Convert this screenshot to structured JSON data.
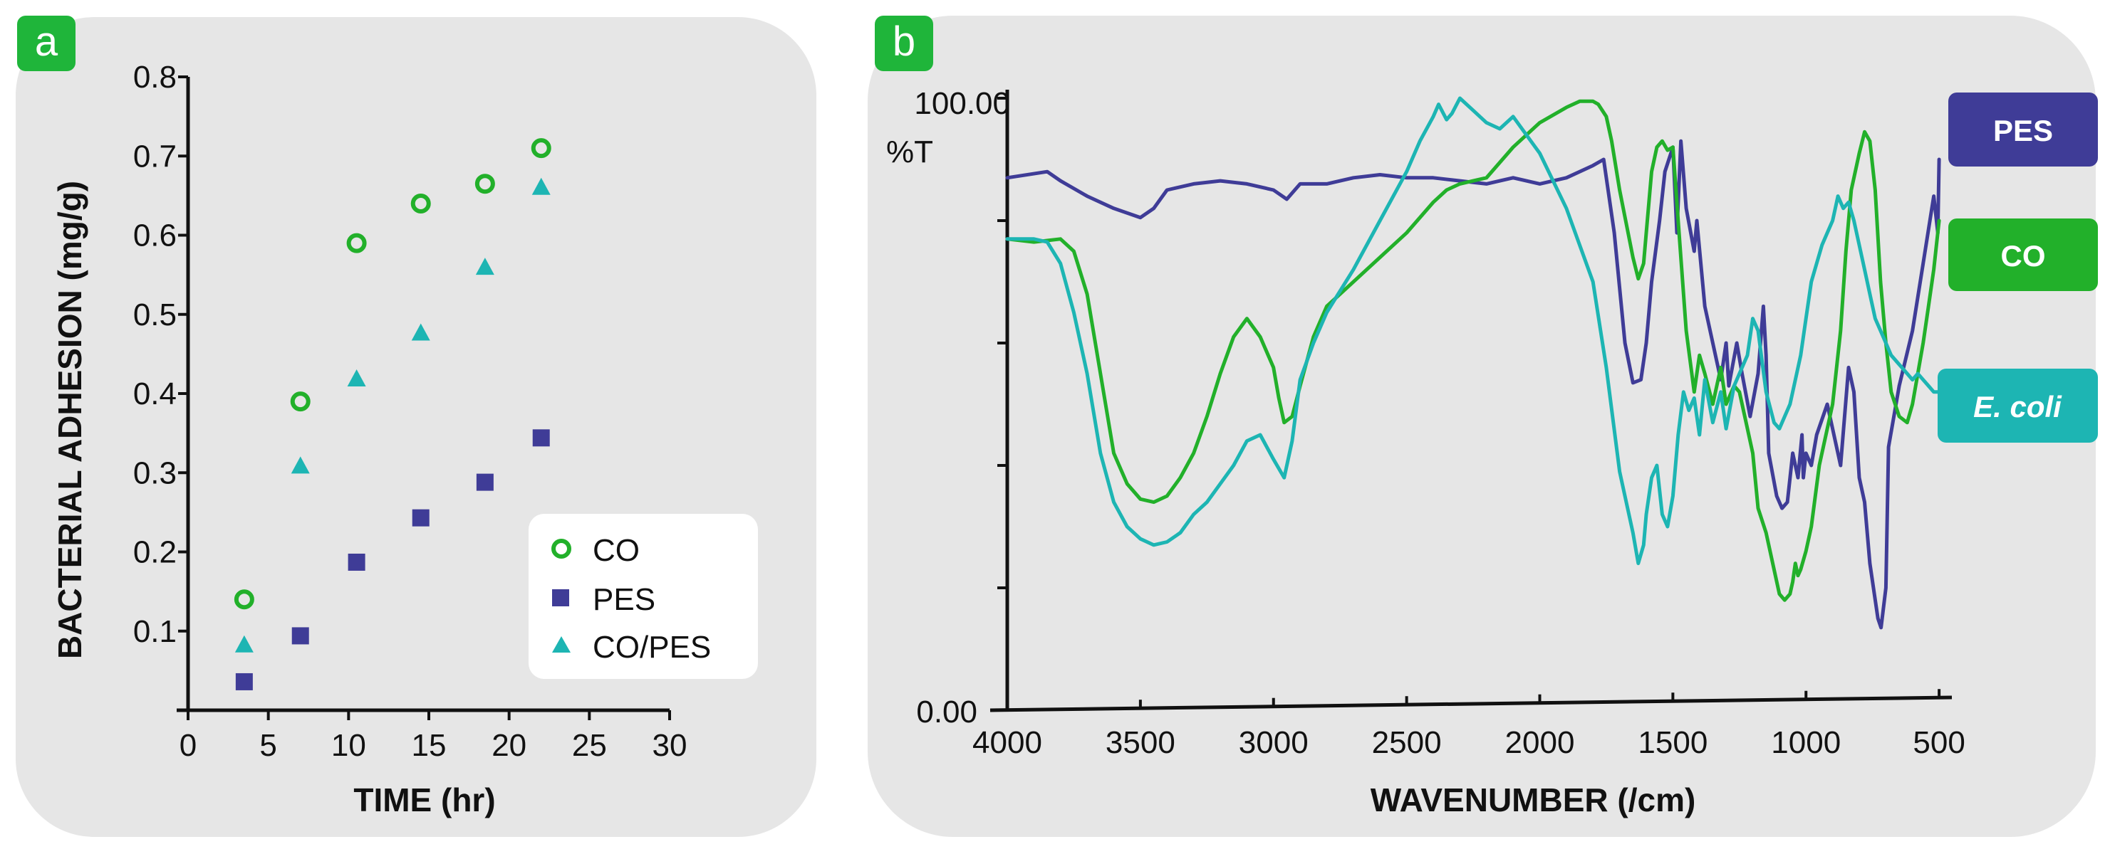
{
  "colors": {
    "panel_bg": "#e6e6e6",
    "tag_bg": "#1fb53a",
    "co": "#22b02a",
    "pes": "#3f3c97",
    "co_pes": "#1db5b3",
    "ecoli": "#1db5b3",
    "axis": "#111111"
  },
  "panel_a": {
    "tag": "a",
    "legend": [
      "CO",
      "PES",
      "CO/PES"
    ]
  },
  "panel_b": {
    "tag": "b",
    "y_top_label": "100.00",
    "y_unit_label": "%T",
    "y_bottom_label": "0.00",
    "legend_boxes": [
      "PES",
      "CO",
      "E. coli"
    ]
  },
  "chart_data": [
    {
      "type": "scatter",
      "title": "",
      "xlabel": "TIME (hr)",
      "ylabel": "BACTERIAL ADHESION (mg/g)",
      "xlim": [
        0,
        30
      ],
      "ylim": [
        0,
        0.8
      ],
      "xticks": [
        "0",
        "5",
        "10",
        "15",
        "20",
        "25",
        "30"
      ],
      "yticks": [
        "0.1",
        "0.2",
        "0.3",
        "0.4",
        "0.5",
        "0.6",
        "0.7",
        "0.8"
      ],
      "series": [
        {
          "name": "CO",
          "marker": "circle-open",
          "x": [
            3.5,
            7,
            10.5,
            14.5,
            18.5,
            22
          ],
          "y": [
            0.14,
            0.39,
            0.59,
            0.64,
            0.665,
            0.71
          ]
        },
        {
          "name": "PES",
          "marker": "square",
          "x": [
            3.5,
            7,
            10.5,
            14.5,
            18.5,
            22
          ],
          "y": [
            0.036,
            0.094,
            0.187,
            0.243,
            0.288,
            0.344
          ]
        },
        {
          "name": "CO/PES",
          "marker": "triangle",
          "x": [
            3.5,
            7,
            10.5,
            14.5,
            18.5,
            22
          ],
          "y": [
            0.082,
            0.308,
            0.418,
            0.476,
            0.559,
            0.66
          ]
        }
      ]
    },
    {
      "type": "line",
      "title": "",
      "xlabel": "WAVENUMBER (/cm)",
      "ylabel": "%T",
      "xlim": [
        4000,
        500
      ],
      "ylim": [
        0,
        100
      ],
      "xticks": [
        "4000",
        "3500",
        "3000",
        "2500",
        "2000",
        "1500",
        "1000",
        "500"
      ],
      "series": [
        {
          "name": "PES",
          "x": [
            4000,
            3850,
            3800,
            3700,
            3600,
            3500,
            3450,
            3400,
            3300,
            3200,
            3100,
            3000,
            2950,
            2900,
            2800,
            2700,
            2600,
            2500,
            2400,
            2300,
            2200,
            2100,
            2000,
            1900,
            1800,
            1760,
            1720,
            1680,
            1650,
            1620,
            1600,
            1580,
            1550,
            1530,
            1500,
            1485,
            1470,
            1450,
            1420,
            1410,
            1380,
            1320,
            1300,
            1290,
            1260,
            1240,
            1210,
            1180,
            1160,
            1150,
            1140,
            1110,
            1090,
            1070,
            1050,
            1040,
            1030,
            1015,
            1010,
            1000,
            980,
            960,
            920,
            870,
            840,
            820,
            800,
            780,
            760,
            730,
            718,
            700,
            690,
            650,
            600,
            560,
            520,
            505,
            500
          ],
          "y": [
            87,
            88,
            86.5,
            84,
            82,
            80.5,
            82,
            85,
            86,
            86.5,
            86,
            85,
            83.5,
            86,
            86,
            87,
            87.5,
            87,
            87,
            86.5,
            86,
            87,
            86,
            87,
            89,
            90,
            78,
            60,
            53.5,
            54,
            60,
            70,
            80,
            88,
            92,
            78,
            93,
            82,
            75,
            80,
            66,
            54,
            60,
            53,
            60,
            55,
            48,
            55,
            66,
            58,
            42,
            35,
            33,
            34,
            42,
            40,
            38,
            45,
            38,
            42,
            40,
            45,
            50,
            40,
            56,
            52,
            38,
            34,
            24,
            15,
            13.5,
            20,
            43,
            53,
            62,
            73,
            84,
            78,
            90
          ]
        },
        {
          "name": "CO",
          "x": [
            4000,
            3900,
            3800,
            3750,
            3700,
            3650,
            3600,
            3550,
            3500,
            3450,
            3400,
            3350,
            3300,
            3250,
            3200,
            3150,
            3100,
            3050,
            3000,
            2980,
            2960,
            2930,
            2900,
            2850,
            2800,
            2700,
            2600,
            2500,
            2400,
            2350,
            2300,
            2250,
            2200,
            2100,
            2000,
            1900,
            1850,
            1800,
            1780,
            1750,
            1730,
            1700,
            1650,
            1630,
            1610,
            1600,
            1580,
            1560,
            1540,
            1520,
            1500,
            1480,
            1450,
            1420,
            1400,
            1380,
            1350,
            1320,
            1300,
            1270,
            1250,
            1230,
            1200,
            1180,
            1150,
            1120,
            1100,
            1080,
            1060,
            1050,
            1040,
            1030,
            1020,
            1000,
            980,
            950,
            900,
            870,
            850,
            830,
            800,
            780,
            760,
            740,
            720,
            700,
            680,
            650,
            620,
            600,
            580,
            560,
            540,
            520,
            500
          ],
          "y": [
            77,
            76.5,
            77,
            75,
            68,
            55,
            42,
            37,
            34.5,
            34,
            35,
            38,
            42,
            48,
            55,
            61,
            64,
            61,
            56,
            51,
            47,
            48,
            53,
            61,
            66,
            70,
            74,
            78,
            83,
            85,
            86,
            86.5,
            87,
            92,
            96,
            98.5,
            99.5,
            99.5,
            99,
            97,
            93,
            85,
            74,
            70.5,
            73,
            78,
            88,
            92,
            93,
            91.5,
            92,
            80,
            62,
            52,
            58,
            55,
            50,
            56,
            50,
            53,
            52,
            48,
            42,
            33,
            29,
            23,
            19,
            18,
            19,
            21,
            24,
            22,
            23,
            26,
            30,
            40,
            50,
            62,
            75,
            85,
            91,
            94.5,
            93,
            85,
            70,
            60,
            52,
            48,
            47,
            50,
            55,
            60,
            66,
            72,
            80
          ]
        },
        {
          "name": "E. coli",
          "x": [
            4000,
            3900,
            3850,
            3800,
            3750,
            3700,
            3650,
            3600,
            3550,
            3500,
            3450,
            3400,
            3350,
            3300,
            3250,
            3200,
            3150,
            3100,
            3050,
            3000,
            2960,
            2930,
            2900,
            2850,
            2800,
            2700,
            2600,
            2500,
            2450,
            2400,
            2380,
            2350,
            2330,
            2300,
            2250,
            2200,
            2150,
            2100,
            2000,
            1900,
            1800,
            1750,
            1700,
            1650,
            1630,
            1610,
            1600,
            1580,
            1560,
            1540,
            1520,
            1500,
            1480,
            1460,
            1440,
            1420,
            1400,
            1380,
            1350,
            1320,
            1300,
            1270,
            1250,
            1220,
            1200,
            1180,
            1150,
            1120,
            1100,
            1080,
            1060,
            1040,
            1020,
            1000,
            980,
            960,
            940,
            920,
            900,
            880,
            860,
            840,
            820,
            800,
            780,
            760,
            740,
            720,
            700,
            680,
            660,
            640,
            620,
            600,
            580,
            560,
            540,
            520,
            500
          ],
          "y": [
            77,
            77,
            76.5,
            73,
            65,
            55,
            42,
            34,
            30,
            28,
            27,
            27.5,
            29,
            32,
            34,
            37,
            40,
            44,
            45,
            41,
            38,
            44,
            54,
            60,
            65,
            72,
            80,
            88,
            93,
            97,
            99,
            96.5,
            97.5,
            100,
            98,
            96,
            95,
            97,
            91,
            82,
            70,
            56,
            39,
            29,
            24,
            27,
            32,
            38,
            40,
            32,
            30,
            35,
            45,
            52,
            49,
            51,
            45,
            54,
            47,
            52,
            46,
            53,
            55,
            58,
            64,
            62,
            52,
            47,
            46,
            48,
            50,
            54,
            58,
            64,
            70,
            73,
            76,
            78,
            80,
            84,
            82,
            83,
            80,
            76,
            72,
            68,
            64,
            62,
            60,
            58,
            57,
            56,
            55,
            54,
            55,
            54,
            53,
            52,
            52
          ]
        }
      ]
    }
  ]
}
